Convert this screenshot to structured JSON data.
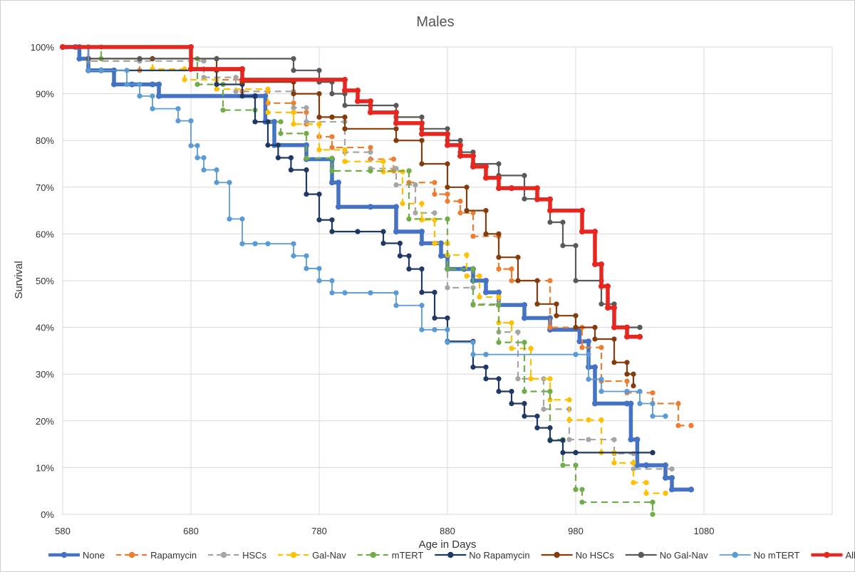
{
  "chart_data": {
    "type": "line",
    "step": true,
    "title": "Males",
    "xlabel": "Age in Days",
    "ylabel": "Survival",
    "xlim": [
      580,
      1180
    ],
    "ylim": [
      0,
      100
    ],
    "x_ticks": [
      "580",
      "680",
      "780",
      "880",
      "980",
      "1080"
    ],
    "y_ticks": [
      "0%",
      "10%",
      "20%",
      "30%",
      "40%",
      "50%",
      "60%",
      "70%",
      "80%",
      "90%",
      "100%"
    ],
    "grid": true,
    "legend_position": "bottom",
    "series": [
      {
        "name": "None",
        "color": "#4472C4",
        "dash": "solid",
        "width": 5.5,
        "x": [
          580,
          590,
          593,
          600,
          610,
          620,
          634,
          650,
          655,
          730,
          738,
          745,
          770,
          790,
          795,
          820,
          840,
          860,
          875,
          880,
          893,
          900,
          910,
          920,
          940,
          960,
          983,
          990,
          995,
          1020,
          1023,
          1028,
          1035,
          1050,
          1055,
          1070
        ],
        "y": [
          100,
          100,
          97.5,
          95,
          95,
          92,
          92,
          92,
          89.5,
          89.5,
          84,
          79,
          76,
          71,
          65.8,
          65.8,
          60.5,
          58,
          55.3,
          52.5,
          52.5,
          50,
          47.5,
          44.8,
          42,
          39.5,
          37,
          31.5,
          23.7,
          23.7,
          16,
          10.5,
          10.5,
          7.8,
          5.3,
          5.3
        ]
      },
      {
        "name": "Rapamycin",
        "color": "#ED7D31",
        "dash": "dashed",
        "width": 2.2,
        "x": [
          580,
          600,
          640,
          700,
          720,
          740,
          760,
          770,
          780,
          790,
          820,
          838,
          850,
          870,
          880,
          890,
          900,
          920,
          930,
          960,
          985,
          1000,
          1020,
          1040,
          1060,
          1070
        ],
        "y": [
          100,
          97,
          95,
          93,
          90.5,
          88,
          86,
          83.5,
          80.8,
          78.5,
          76,
          73.5,
          71,
          68.5,
          67,
          64.5,
          59.5,
          52.5,
          50,
          40,
          35.7,
          28.5,
          26,
          23.7,
          19,
          19
        ]
      },
      {
        "name": "HSCs",
        "color": "#A5A5A5",
        "dash": "dashed",
        "width": 2.2,
        "x": [
          580,
          600,
          640,
          690,
          715,
          760,
          770,
          800,
          820,
          840,
          855,
          870,
          880,
          900,
          920,
          935,
          955,
          975,
          990,
          1010,
          1025,
          1055
        ],
        "y": [
          100,
          97,
          97,
          93.5,
          90.5,
          87,
          84,
          77.5,
          74,
          70.5,
          64.5,
          58,
          48.5,
          45,
          39,
          29,
          22.5,
          16,
          16,
          13,
          9.7,
          9.7
        ]
      },
      {
        "name": "Gal-Nav",
        "color": "#FFC000",
        "dash": "dashed",
        "width": 2.2,
        "x": [
          580,
          600,
          650,
          675,
          700,
          740,
          760,
          780,
          800,
          830,
          845,
          860,
          870,
          880,
          895,
          905,
          920,
          930,
          945,
          960,
          975,
          990,
          1000,
          1010,
          1025,
          1035,
          1050
        ],
        "y": [
          100,
          97.5,
          95.3,
          93,
          91,
          86,
          83.5,
          78,
          75.5,
          73.3,
          66.5,
          63,
          58,
          55.5,
          51,
          46.5,
          41,
          35.5,
          29,
          24.5,
          20.2,
          20.2,
          13.2,
          11,
          6.8,
          4.5,
          4.5
        ]
      },
      {
        "name": "mTERT",
        "color": "#70AD47",
        "dash": "dashed",
        "width": 2.2,
        "x": [
          580,
          610,
          650,
          685,
          705,
          730,
          750,
          770,
          790,
          820,
          850,
          880,
          900,
          920,
          940,
          960,
          970,
          980,
          985,
          1040
        ],
        "y": [
          100,
          97.5,
          97.5,
          92,
          86.5,
          84,
          81.5,
          76.2,
          73.5,
          73.5,
          63.2,
          52.5,
          44.8,
          36.8,
          26.3,
          16,
          10.5,
          5.3,
          2.6,
          0
        ]
      },
      {
        "name": "No Rapamycin",
        "color": "#203864",
        "dash": "solid",
        "width": 2.2,
        "x": [
          580,
          590,
          600,
          610,
          700,
          720,
          730,
          740,
          748,
          758,
          770,
          780,
          790,
          810,
          830,
          843,
          850,
          860,
          870,
          880,
          900,
          910,
          920,
          930,
          940,
          950,
          960,
          970,
          980,
          1040
        ],
        "y": [
          100,
          100,
          95,
          95,
          92,
          89.5,
          84,
          79,
          76.3,
          73.7,
          68.5,
          63,
          60.5,
          60.5,
          58,
          55.3,
          52.5,
          47.5,
          42,
          37,
          31.5,
          29,
          26.3,
          23.7,
          21,
          18.5,
          15.8,
          13.2,
          13.2,
          13.2
        ]
      },
      {
        "name": "No HSCs",
        "color": "#843C0C",
        "dash": "solid",
        "width": 2.2,
        "x": [
          580,
          600,
          650,
          700,
          720,
          760,
          780,
          790,
          800,
          840,
          860,
          880,
          895,
          910,
          920,
          935,
          950,
          965,
          980,
          995,
          1010,
          1020,
          1025
        ],
        "y": [
          100,
          97.5,
          97.5,
          95,
          92.5,
          90,
          85,
          85,
          82.5,
          80,
          75,
          70,
          65,
          60,
          55,
          50,
          45,
          42.5,
          40,
          37.5,
          32.5,
          30,
          27.5
        ]
      },
      {
        "name": "No Gal-Nav",
        "color": "#595959",
        "dash": "solid",
        "width": 2.2,
        "x": [
          580,
          600,
          640,
          700,
          760,
          780,
          790,
          800,
          820,
          840,
          860,
          880,
          890,
          900,
          920,
          940,
          960,
          970,
          980,
          1000,
          1010,
          1030
        ],
        "y": [
          100,
          97.5,
          97.5,
          97.5,
          95,
          92.5,
          90,
          87.5,
          87.5,
          85,
          82.5,
          80,
          77.5,
          75,
          72.5,
          67.5,
          62.5,
          57.5,
          50,
          45,
          40,
          40
        ]
      },
      {
        "name": "No mTERT",
        "color": "#5B9BD5",
        "dash": "solid",
        "width": 1.8,
        "x": [
          580,
          590,
          600,
          610,
          630,
          640,
          650,
          670,
          680,
          685,
          690,
          700,
          710,
          720,
          730,
          740,
          760,
          770,
          780,
          790,
          800,
          820,
          840,
          860,
          870,
          880,
          900,
          910,
          980,
          990,
          1000,
          1020,
          1030,
          1040,
          1050
        ],
        "y": [
          100,
          100,
          95,
          95,
          92,
          89.5,
          86.8,
          84.2,
          78.9,
          76.3,
          73.7,
          71,
          63.2,
          57.9,
          57.9,
          57.9,
          55.3,
          52.6,
          50,
          47.4,
          47.4,
          47.4,
          44.7,
          39.5,
          39.5,
          36.8,
          34.2,
          34.2,
          34.2,
          28.9,
          26.3,
          26.3,
          23.7,
          21,
          21
        ]
      },
      {
        "name": "All",
        "color": "#E8261F",
        "dash": "solid",
        "width": 5.5,
        "x": [
          580,
          680,
          720,
          800,
          810,
          820,
          840,
          860,
          880,
          890,
          900,
          910,
          920,
          930,
          950,
          960,
          985,
          995,
          1000,
          1005,
          1010,
          1020,
          1030
        ],
        "y": [
          100,
          95.3,
          93,
          90.7,
          88.4,
          86,
          83.7,
          81.4,
          79,
          76.7,
          74.4,
          72,
          69.8,
          69.8,
          67.4,
          65,
          60.5,
          53.5,
          48.8,
          44.2,
          40,
          38,
          38
        ]
      }
    ]
  }
}
